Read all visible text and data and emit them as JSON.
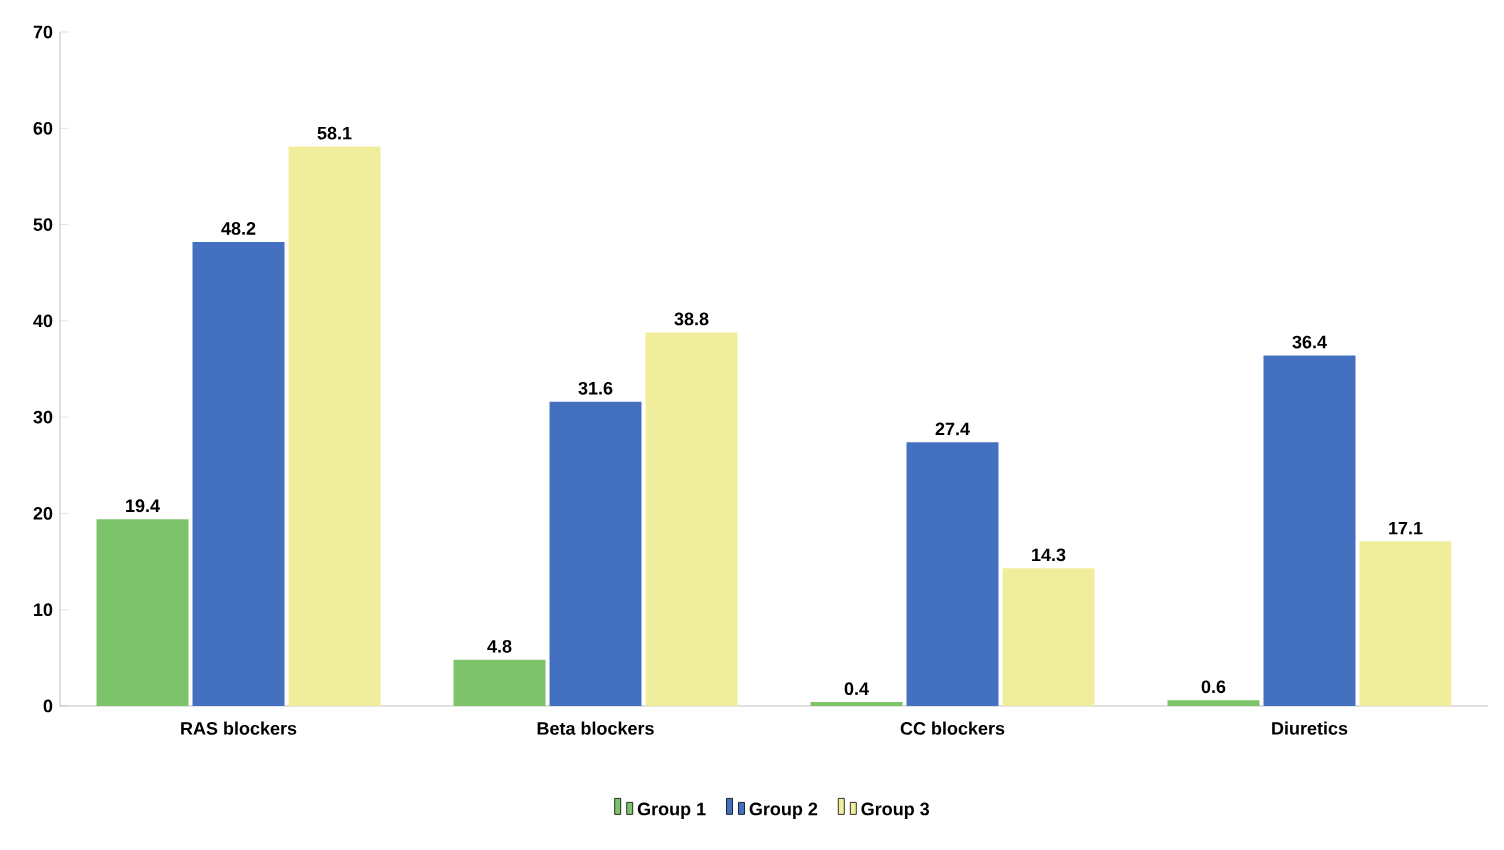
{
  "chart_data": {
    "type": "bar",
    "categories": [
      "RAS blockers",
      "Beta blockers",
      "CC blockers",
      "Diuretics"
    ],
    "series": [
      {
        "name": "Group 1",
        "color": "#7dc36b",
        "values": [
          19.4,
          4.8,
          0.4,
          0.6
        ]
      },
      {
        "name": "Group 2",
        "color": "#4470c0",
        "values": [
          48.2,
          31.6,
          27.4,
          36.4
        ]
      },
      {
        "name": "Group 3",
        "color": "#f0ee9c",
        "values": [
          58.1,
          38.8,
          14.3,
          17.1
        ]
      }
    ],
    "ylim": [
      0,
      70
    ],
    "yticks": [
      0,
      10,
      20,
      30,
      40,
      50,
      60,
      70
    ],
    "data_labels": true,
    "legend": "bottom",
    "grid": false
  }
}
